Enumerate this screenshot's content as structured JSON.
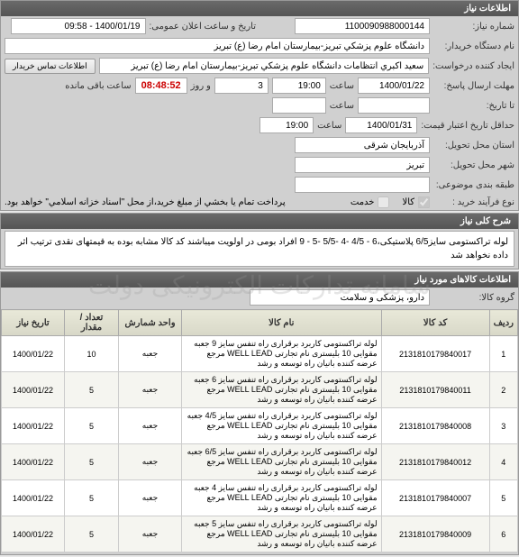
{
  "panel1": {
    "title": "اطلاعات نیاز",
    "need_no_label": "شماره نیاز:",
    "need_no": "1100090988000144",
    "announce_label": "تاریخ و ساعت اعلان عمومی:",
    "announce": "1400/01/19 - 09:58",
    "buyer_label": "نام دستگاه خریدار:",
    "buyer": "دانشگاه علوم پزشكي تبريز-بيمارستان امام رضا (ع) تبريز",
    "creator_label": "ایجاد کننده درخواست:",
    "creator": "سعيد اكبري انتظامات دانشگاه علوم پزشكي تبريز-بيمارستان امام رضا (ع) تبريز",
    "contact_btn": "اطلاعات تماس خریدار",
    "reply_deadline_label": "مهلت ارسال پاسخ:",
    "reply_deadline_date": "1400/01/22",
    "reply_deadline_time": "19:00",
    "countdown": "08:48:52",
    "days": "3",
    "saat": "ساعت",
    "rooz": "و روز",
    "remain": "ساعت باقی مانده",
    "ta_label": "تا تاریخ:",
    "validity_label": "حداقل تاریخ اعتبار قیمت:",
    "validity_date": "1400/01/31",
    "validity_time": "19:00",
    "province_label": "استان محل تحویل:",
    "province": "آذربایجان شرقی",
    "city_label": "شهر محل تحویل:",
    "city": "تبریز",
    "package_label": "طبقه بندی موضوعی:",
    "type_label": "نوع فرآیند خرید :",
    "goods_label": "کالا",
    "service_label": "خدمت",
    "note": "پرداخت تمام يا بخشي از مبلغ خريد،از محل \"اسناد خزانه اسلامي\" خواهد بود."
  },
  "panel2": {
    "title": "شرح کلی نیاز",
    "description": "لوله تراکستومی سایز6/5 پلاستیکی،6 - 4/5 -4  -5/5 -5 - 9   افراد بومی در اولویت میباشند کد کالا مشابه بوده به قیمتهای نقدی ترتیب اثر داده نخواهد شد"
  },
  "panel3": {
    "title": "اطلاعات کالاهای مورد نیاز",
    "group_label": "گروه کالا:",
    "group": "دارو، پزشکی و سلامت",
    "columns": {
      "idx": "ردیف",
      "code": "کد کالا",
      "name": "نام کالا",
      "unit": "واحد شمارش",
      "qty": "تعداد / مقدار",
      "date": "تاریخ نیاز"
    },
    "rows": [
      {
        "idx": "1",
        "code": "2131810179840017",
        "name": "لوله تراکستومی کاربرد برقراری راه تنفس سایز 9 جعبه مقوایی 10 بلیستری نام تجارتی WELL LEAD مرجع عرضه کننده بانیان راه توسعه و رشد",
        "unit": "جعبه",
        "qty": "10",
        "date": "1400/01/22"
      },
      {
        "idx": "2",
        "code": "2131810179840011",
        "name": "لوله تراکستومی کاربرد برقراری راه تنفس سایز 6 جعبه مقوایی 10 بلیستری نام تجارتی WELL LEAD مرجع عرضه کننده بانیان راه توسعه و رشد",
        "unit": "جعبه",
        "qty": "5",
        "date": "1400/01/22"
      },
      {
        "idx": "3",
        "code": "2131810179840008",
        "name": "لوله تراکستومی کاربرد برقراری راه تنفس سایز 4/5 جعبه مقوایی 10 بلیستری نام تجارتی WELL LEAD مرجع عرضه کننده بانیان راه توسعه و رشد",
        "unit": "جعبه",
        "qty": "5",
        "date": "1400/01/22"
      },
      {
        "idx": "4",
        "code": "2131810179840012",
        "name": "لوله تراکستومی کاربرد برقراری راه تنفس سایز 6/5 جعبه مقوایی 10 بلیستری نام تجارتی WELL LEAD مرجع عرضه کننده بانیان راه توسعه و رشد",
        "unit": "جعبه",
        "qty": "5",
        "date": "1400/01/22"
      },
      {
        "idx": "5",
        "code": "2131810179840007",
        "name": "لوله تراکستومی کاربرد برقراری راه تنفس سایز 4 جعبه مقوایی 10 بلیستری نام تجارتی WELL LEAD مرجع عرضه کننده بانیان راه توسعه و رشد",
        "unit": "جعبه",
        "qty": "5",
        "date": "1400/01/22"
      },
      {
        "idx": "6",
        "code": "2131810179840009",
        "name": "لوله تراکستومی کاربرد برقراری راه تنفس سایز 5 جعبه مقوایی 10 بلیستری نام تجارتی WELL LEAD مرجع عرضه کننده بانیان راه توسعه و رشد",
        "unit": "جعبه",
        "qty": "5",
        "date": "1400/01/22"
      }
    ]
  },
  "watermark": "سامانه تدارکات الکترونیکی دولت"
}
